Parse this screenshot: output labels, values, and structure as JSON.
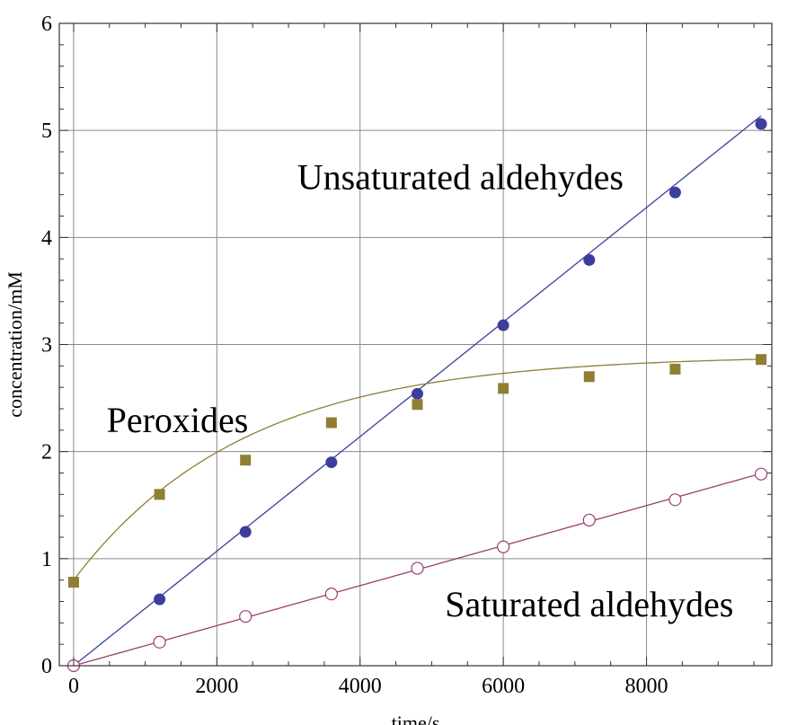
{
  "chart_data": {
    "type": "scatter",
    "xlabel": "time/s",
    "ylabel": "concentration/mM",
    "xlim": [
      -200,
      9750
    ],
    "ylim": [
      0,
      6
    ],
    "xticks": [
      0,
      2000,
      4000,
      6000,
      8000
    ],
    "yticks": [
      0,
      1,
      2,
      3,
      4,
      5,
      6
    ],
    "grid": true,
    "series": [
      {
        "name": "Unsaturated aldehydes",
        "marker": "filled-circle",
        "color": "#3d3d9c",
        "x": [
          0,
          1200,
          2400,
          3600,
          4800,
          6000,
          7200,
          8400,
          9600
        ],
        "y": [
          0.0,
          0.62,
          1.25,
          1.9,
          2.54,
          3.18,
          3.79,
          4.42,
          5.06
        ],
        "fit": {
          "kind": "linear",
          "slope": 0.000535,
          "intercept": 0.0,
          "x_range": [
            0,
            9600
          ]
        }
      },
      {
        "name": "Peroxides",
        "marker": "filled-square",
        "color": "#8f7f35",
        "x": [
          0,
          1200,
          2400,
          3600,
          4800,
          6000,
          7200,
          8400,
          9600
        ],
        "y": [
          0.78,
          1.6,
          1.92,
          2.27,
          2.44,
          2.59,
          2.7,
          2.77,
          2.86
        ],
        "fit": {
          "kind": "exp-saturation",
          "a": 2.9,
          "b": 2.1,
          "k": 0.00042,
          "x_range": [
            0,
            9600
          ]
        }
      },
      {
        "name": "Saturated aldehydes",
        "marker": "open-circle",
        "color": "#9c3d72",
        "x": [
          0,
          1200,
          2400,
          3600,
          4800,
          6000,
          7200,
          8400,
          9600
        ],
        "y": [
          0.0,
          0.22,
          0.46,
          0.67,
          0.91,
          1.11,
          1.36,
          1.55,
          1.79
        ],
        "fit": {
          "kind": "linear",
          "slope": 0.000187,
          "intercept": 0.0,
          "x_range": [
            0,
            9600
          ]
        }
      }
    ],
    "annotations": [
      {
        "text": "Unsaturated aldehydes",
        "x": 5400,
        "y": 4.45
      },
      {
        "text": "Peroxides",
        "x": 1450,
        "y": 2.18
      },
      {
        "text": "Saturated aldehydes",
        "x": 7200,
        "y": 0.46
      }
    ]
  }
}
